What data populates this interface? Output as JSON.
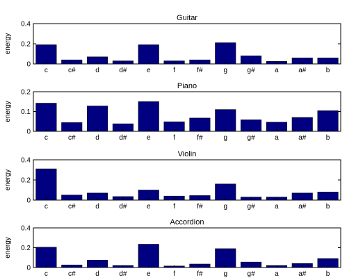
{
  "chart_data": [
    {
      "type": "bar",
      "title": "Guitar",
      "ylabel": "energy",
      "ylim": [
        0,
        0.4
      ],
      "yticks": [
        "0",
        "0.2",
        "0.4"
      ],
      "categories": [
        "c",
        "c#",
        "d",
        "d#",
        "e",
        "f",
        "f#",
        "g",
        "g#",
        "a",
        "a#",
        "b"
      ],
      "values": [
        0.19,
        0.04,
        0.07,
        0.03,
        0.19,
        0.03,
        0.04,
        0.21,
        0.08,
        0.025,
        0.06,
        0.06
      ],
      "bar_color": "#000080"
    },
    {
      "type": "bar",
      "title": "Piano",
      "ylabel": "energy",
      "ylim": [
        0,
        0.2
      ],
      "yticks": [
        "0",
        "0.1",
        "0.2"
      ],
      "categories": [
        "c",
        "c#",
        "d",
        "d#",
        "e",
        "f",
        "f#",
        "g",
        "g#",
        "a",
        "a#",
        "b"
      ],
      "values": [
        0.142,
        0.044,
        0.128,
        0.038,
        0.15,
        0.048,
        0.067,
        0.11,
        0.058,
        0.046,
        0.07,
        0.104
      ],
      "bar_color": "#000080"
    },
    {
      "type": "bar",
      "title": "Violin",
      "ylabel": "energy",
      "ylim": [
        0,
        0.4
      ],
      "yticks": [
        "0",
        "0.2",
        "0.4"
      ],
      "categories": [
        "c",
        "c#",
        "d",
        "d#",
        "e",
        "f",
        "f#",
        "g",
        "g#",
        "a",
        "a#",
        "b"
      ],
      "values": [
        0.31,
        0.05,
        0.07,
        0.035,
        0.1,
        0.04,
        0.045,
        0.16,
        0.03,
        0.03,
        0.07,
        0.08
      ],
      "bar_color": "#000080"
    },
    {
      "type": "bar",
      "title": "Accordion",
      "ylabel": "energy",
      "ylim": [
        0,
        0.4
      ],
      "yticks": [
        "0",
        "0.2",
        "0.4"
      ],
      "categories": [
        "c",
        "c#",
        "d",
        "d#",
        "e",
        "f",
        "f#",
        "g",
        "g#",
        "a",
        "a#",
        "b"
      ],
      "values": [
        0.205,
        0.025,
        0.075,
        0.02,
        0.235,
        0.015,
        0.035,
        0.19,
        0.055,
        0.02,
        0.04,
        0.09
      ],
      "bar_color": "#000080"
    }
  ]
}
